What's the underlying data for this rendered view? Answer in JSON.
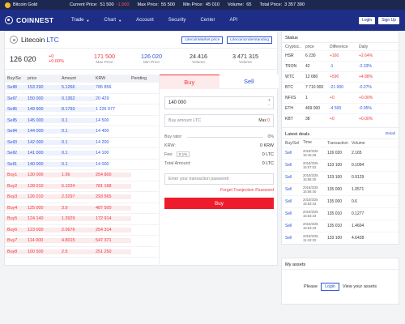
{
  "ticker": {
    "coin": "Bitcoin Gold",
    "current_label": "Current Price:",
    "current_value": "51 500",
    "current_change": "-1,500",
    "max_label": "Max Price:",
    "max_value": "55 500",
    "min_label": "Min Price:",
    "min_value": "45 010",
    "volume_label": "Volume:",
    "volume_value": "65",
    "total_label": "Total Price:",
    "total_value": "3 357 390"
  },
  "nav": {
    "logo": "COINNEST",
    "items": [
      "Trade",
      "Chart",
      "Account",
      "Security",
      "Center",
      "API"
    ],
    "login": "Login",
    "signup": "Sign Up"
  },
  "coin": {
    "name": "Litecoin",
    "symbol": "LTC",
    "market_btn": "LitecoinMarket price",
    "understanding_btn": "LitecoinUnderstanding",
    "price": "126 020",
    "change": "+0",
    "change_pct": "+0.00%",
    "max_price": "171 500",
    "max_label": "Max Price",
    "min_price": "126 020",
    "min_label": "Min Price",
    "volume": "24.416",
    "volume_label": "Volume",
    "total": "3 471 315",
    "total_label": "Volume"
  },
  "book": {
    "headers": [
      "Buy/Se",
      "price",
      "Amount",
      "KRW",
      "Pending"
    ],
    "sells": [
      {
        "label": "Sell8",
        "price": "153 290",
        "amount": "5.1266",
        "krw": "785 856"
      },
      {
        "label": "Sell7",
        "price": "150 000",
        "amount": "0.1362",
        "krw": "20 429"
      },
      {
        "label": "Sell6",
        "price": "149 900",
        "amount": "8.1793",
        "krw": "1 226 077"
      },
      {
        "label": "Sell5",
        "price": "145 000",
        "amount": "0.1",
        "krw": "14 500"
      },
      {
        "label": "Sell4",
        "price": "144 000",
        "amount": "0.1",
        "krw": "14 400"
      },
      {
        "label": "Sell3",
        "price": "142 000",
        "amount": "0.1",
        "krw": "14 200"
      },
      {
        "label": "Sell2",
        "price": "141 000",
        "amount": "0.1",
        "krw": "14 100"
      },
      {
        "label": "Sell1",
        "price": "140 000",
        "amount": "0.1",
        "krw": "14 000"
      }
    ],
    "buys": [
      {
        "label": "Buy1",
        "price": "130 000",
        "amount": "1.96",
        "krw": "254 800"
      },
      {
        "label": "Buy2",
        "price": "128 010",
        "amount": "6.1024",
        "krw": "781 168"
      },
      {
        "label": "Buy3",
        "price": "126 010",
        "amount": "2.3297",
        "krw": "293 565"
      },
      {
        "label": "Buy4",
        "price": "125 000",
        "amount": "3.9",
        "krw": "487 500"
      },
      {
        "label": "Buy5",
        "price": "124 140",
        "amount": "1.3929",
        "krw": "172 914"
      },
      {
        "label": "Buy6",
        "price": "123 000",
        "amount": "2.0676",
        "krw": "254 314"
      },
      {
        "label": "Buy7",
        "price": "114 000",
        "amount": "4.8015",
        "krw": "547 371"
      },
      {
        "label": "Buy8",
        "price": "100 500",
        "amount": "2.5",
        "krw": "251 250"
      }
    ]
  },
  "trade": {
    "buy_tab": "Buy",
    "sell_tab": "Sell",
    "price_value": "140 000",
    "amount_placeholder": "Buy amount LTC",
    "max_label": "Max",
    "max_value": "0",
    "ratio_label": "Buy ratio:",
    "ratio_value": "0%",
    "krw_label": "KRW:",
    "krw_value": "0 KRW",
    "fee_label": "Fee:",
    "fee_rate": "0.1%",
    "fee_value": "0 LTC",
    "total_label": "Total Amount:",
    "total_value": "0 LTC",
    "password_placeholder": "Enter your transaction password",
    "forgot": "Forget Tranjection Password",
    "buy_button": "Buy"
  },
  "status": {
    "title": "Status",
    "headers": [
      "Cryptoc..",
      "price",
      "Difference",
      "Daily"
    ],
    "rows": [
      {
        "coin": "HSR",
        "price": "6 230",
        "diff": "+160",
        "daily": "+2.64%"
      },
      {
        "coin": "TRON",
        "price": "42",
        "diff": "-1",
        "daily": "-2.33%"
      },
      {
        "coin": "WTC",
        "price": "12 680",
        "diff": "+590",
        "daily": "+4.88%"
      },
      {
        "coin": "BTC",
        "price": "7 710 000",
        "diff": "-21 000",
        "daily": "-0.27%"
      },
      {
        "coin": "NFXS",
        "price": "1",
        "diff": "+0",
        "daily": "+0.00%"
      },
      {
        "coin": "ETH",
        "price": "469 000",
        "diff": "-4 500",
        "daily": "-0.95%"
      },
      {
        "coin": "KBT",
        "price": "38",
        "diff": "+0",
        "daily": "+0.00%"
      }
    ]
  },
  "deals": {
    "title": "Latest deals",
    "detail": "Detail",
    "headers": [
      "Buy/Sel",
      "Time",
      "Transaction",
      "Volume"
    ],
    "rows": [
      {
        "type": "Sell",
        "date": "2018/3/25",
        "time": "16:16:28",
        "price": "126 020",
        "volume": "2.165"
      },
      {
        "type": "Sell",
        "date": "2018/3/25",
        "time": "15:57:02",
        "price": "133 100",
        "volume": "0.1094"
      },
      {
        "type": "Sell",
        "date": "2018/3/25",
        "time": "15:56:40",
        "price": "133 100",
        "volume": "0.9129"
      },
      {
        "type": "Sell",
        "date": "2018/3/25",
        "time": "15:56:40",
        "price": "135 000",
        "volume": "1.0571"
      },
      {
        "type": "Sell",
        "date": "2018/3/25",
        "time": "15:53:43",
        "price": "135 000",
        "volume": "0.6"
      },
      {
        "type": "Sell",
        "date": "2018/3/25",
        "time": "15:53:43",
        "price": "135 010",
        "volume": "0.1277"
      },
      {
        "type": "Sell",
        "date": "2018/3/25",
        "time": "15:53:43",
        "price": "135 010",
        "volume": "1.4604"
      },
      {
        "type": "Sell",
        "date": "2018/3/25",
        "time": "11:42:33",
        "price": "133 100",
        "volume": "4.6428"
      }
    ]
  },
  "assets": {
    "title": "My assets",
    "please": "Please",
    "login": "Login",
    "view": "View your assets"
  }
}
